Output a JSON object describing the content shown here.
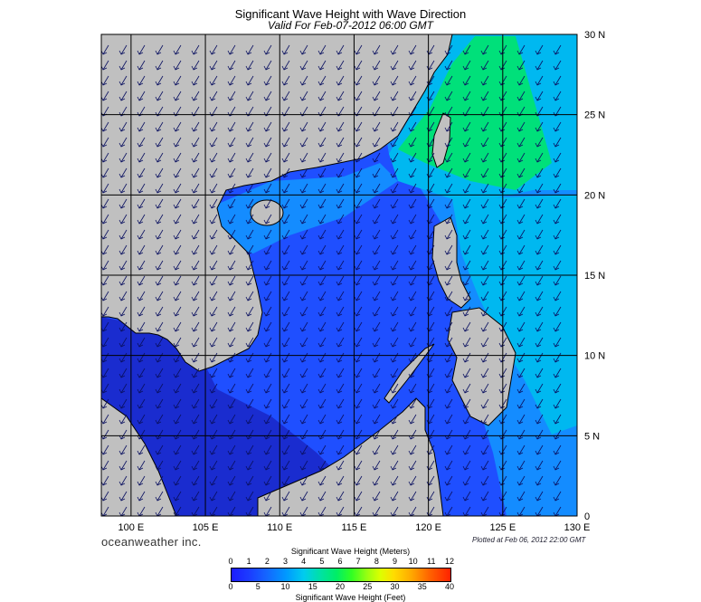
{
  "title": "Significant Wave Height with Wave Direction",
  "subtitle": "Valid For Feb-07-2012 06:00 GMT",
  "map": {
    "lon_range": [
      98,
      130
    ],
    "lat_range": [
      0,
      30
    ],
    "lon_labels": [
      "100 E",
      "105 E",
      "110 E",
      "115 E",
      "120 E",
      "125 E",
      "130 E"
    ],
    "lon_values": [
      100,
      105,
      110,
      115,
      120,
      125,
      130
    ],
    "lat_labels": [
      "0",
      "5 N",
      "10 N",
      "15 N",
      "20 N",
      "25 N",
      "30 N"
    ],
    "lat_values": [
      0,
      5,
      10,
      15,
      20,
      25,
      30
    ],
    "land_color": "#c0c0c0",
    "grid": true,
    "ocean_colors": {
      "deep_blue": "#1a2ccf",
      "blue": "#1f4fff",
      "sky": "#148cff",
      "cyan": "#00b8f0",
      "green": "#00e07a"
    }
  },
  "branding": "oceanweather inc.",
  "plotted": "Plotted at Feb 06, 2012 22:00 GMT",
  "colorbar": {
    "title_top": "Significant Wave Height (Meters)",
    "title_bottom": "Significant Wave Height (Feet)",
    "meters": [
      "0",
      "1",
      "2",
      "3",
      "4",
      "5",
      "6",
      "7",
      "8",
      "9",
      "10",
      "11",
      "12"
    ],
    "feet": [
      "0",
      "5",
      "10",
      "15",
      "20",
      "25",
      "30",
      "35",
      "40"
    ]
  }
}
